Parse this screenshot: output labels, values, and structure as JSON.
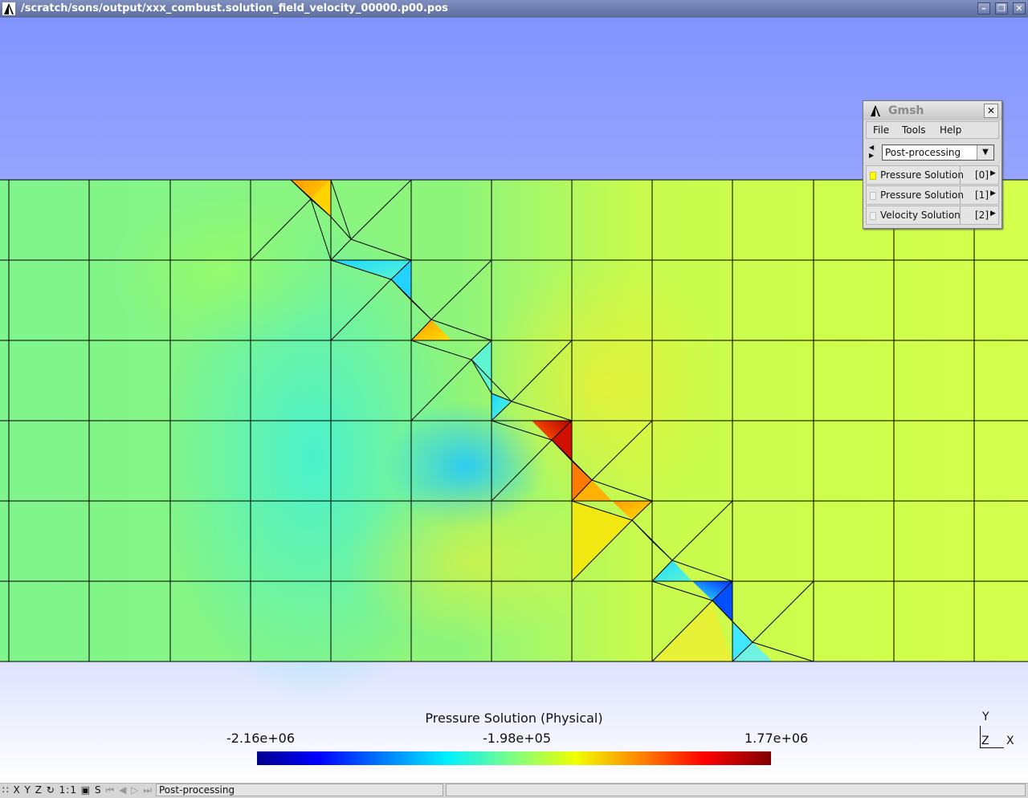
{
  "window": {
    "title": "/scratch/sons/output/xxx_combust.solution_field_velocity_00000.p00.pos",
    "icon": "gmsh-logo-icon",
    "controls": [
      "minimize-icon",
      "restore-icon",
      "close-icon"
    ]
  },
  "colorbar": {
    "title": "Pressure Solution (Physical)",
    "min_label": "-2.16e+06",
    "mid_label": "-1.98e+05",
    "max_label": "1.77e+06",
    "colormap": [
      "#00008f",
      "#0000ff",
      "#0080ff",
      "#00f0ff",
      "#80ff80",
      "#f0ff00",
      "#ff8000",
      "#ff0000",
      "#7f0000"
    ]
  },
  "axes": {
    "y": "Y",
    "z": "Z",
    "x": "X"
  },
  "panel": {
    "title": "Gmsh",
    "menu": [
      "File",
      "Tools",
      "Help"
    ],
    "module": "Post-processing",
    "views": [
      {
        "name": "Pressure Solution",
        "index": "[0]",
        "visible": true
      },
      {
        "name": "Pressure Solution",
        "index": "[1]",
        "visible": false
      },
      {
        "name": "Velocity Solution",
        "index": "[2]",
        "visible": false
      }
    ]
  },
  "statusbar": {
    "buttons": [
      "X",
      "Y",
      "Z",
      "1:1",
      "S"
    ],
    "message": "Post-processing"
  }
}
